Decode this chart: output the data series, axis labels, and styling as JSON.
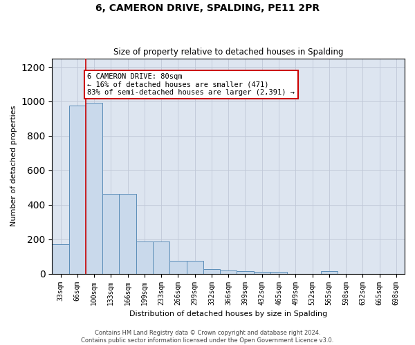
{
  "title": "6, CAMERON DRIVE, SPALDING, PE11 2PR",
  "subtitle": "Size of property relative to detached houses in Spalding",
  "xlabel": "Distribution of detached houses by size in Spalding",
  "ylabel": "Number of detached properties",
  "bar_labels": [
    "33sqm",
    "66sqm",
    "100sqm",
    "133sqm",
    "166sqm",
    "199sqm",
    "233sqm",
    "266sqm",
    "299sqm",
    "332sqm",
    "366sqm",
    "399sqm",
    "432sqm",
    "465sqm",
    "499sqm",
    "532sqm",
    "565sqm",
    "598sqm",
    "632sqm",
    "665sqm",
    "698sqm"
  ],
  "bar_values": [
    170,
    975,
    990,
    465,
    465,
    185,
    185,
    75,
    75,
    25,
    20,
    15,
    10,
    10,
    0,
    0,
    15,
    0,
    0,
    0,
    0
  ],
  "bar_color": "#c9d9eb",
  "bar_edge_color": "#5b8db8",
  "ylim": [
    0,
    1250
  ],
  "yticks": [
    0,
    200,
    400,
    600,
    800,
    1000,
    1200
  ],
  "vline_color": "#cc0000",
  "vline_pos": 1.5,
  "annotation_text": "6 CAMERON DRIVE: 80sqm\n← 16% of detached houses are smaller (471)\n83% of semi-detached houses are larger (2,391) →",
  "annotation_box_color": "#ffffff",
  "annotation_box_edge": "#cc0000",
  "footer_text": "Contains HM Land Registry data © Crown copyright and database right 2024.\nContains public sector information licensed under the Open Government Licence v3.0.",
  "background_color": "#dde5f0",
  "fig_bg": "#ffffff",
  "title_fontsize": 10,
  "subtitle_fontsize": 8.5,
  "ylabel_fontsize": 8,
  "xlabel_fontsize": 8,
  "tick_fontsize": 7,
  "footer_fontsize": 6,
  "ann_fontsize": 7.5
}
